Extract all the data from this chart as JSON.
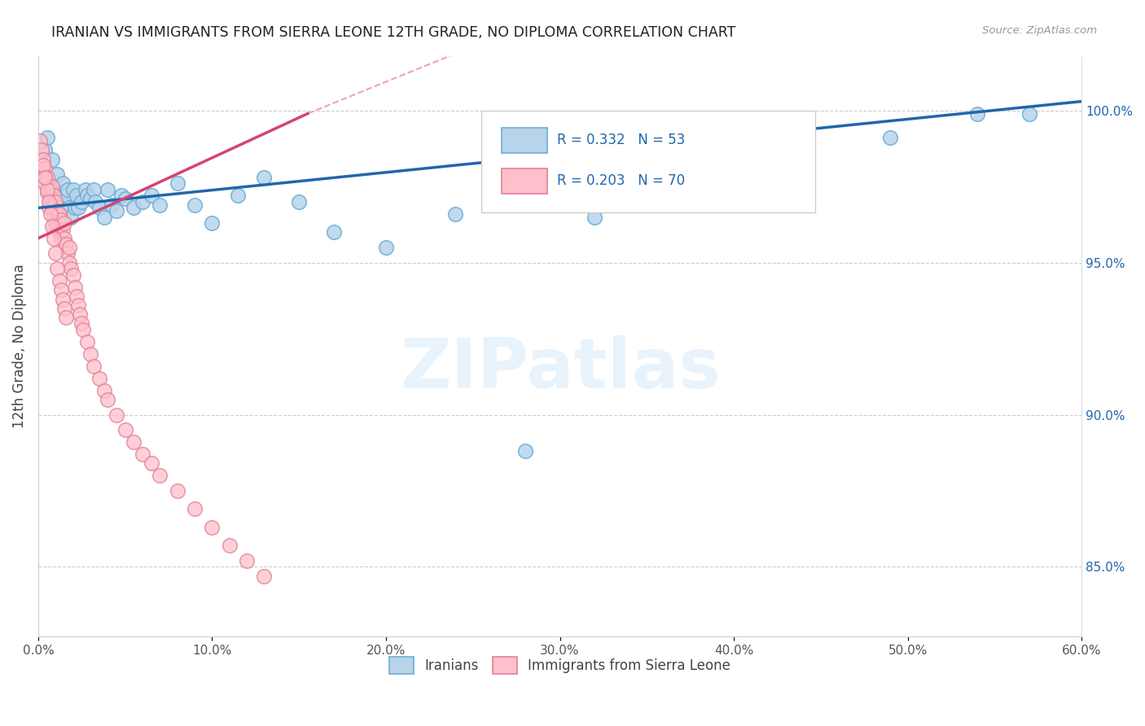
{
  "title": "IRANIAN VS IMMIGRANTS FROM SIERRA LEONE 12TH GRADE, NO DIPLOMA CORRELATION CHART",
  "source": "Source: ZipAtlas.com",
  "ylabel": "12th Grade, No Diploma",
  "ylabel_right_ticks": [
    "100.0%",
    "95.0%",
    "90.0%",
    "85.0%"
  ],
  "ylabel_right_values": [
    1.0,
    0.95,
    0.9,
    0.85
  ],
  "legend_blue_r": "R = 0.332",
  "legend_blue_n": "N = 53",
  "legend_pink_r": "R = 0.203",
  "legend_pink_n": "N = 70",
  "legend_label_blue": "Iranians",
  "legend_label_pink": "Immigrants from Sierra Leone",
  "blue_scatter_color_face": "#b8d4ea",
  "blue_scatter_color_edge": "#6baed6",
  "pink_scatter_color_face": "#ffc0cb",
  "pink_scatter_color_edge": "#e08098",
  "blue_line_color": "#2166ac",
  "pink_line_color": "#d6446e",
  "pink_dashed_color": "#f4a0b5",
  "background_color": "#ffffff",
  "watermark_text": "ZIPatlas",
  "x_min": 0.0,
  "x_max": 0.6,
  "y_min": 0.827,
  "y_max": 1.018,
  "blue_scatter_x": [
    0.002,
    0.004,
    0.005,
    0.006,
    0.007,
    0.008,
    0.009,
    0.01,
    0.011,
    0.012,
    0.013,
    0.014,
    0.015,
    0.016,
    0.017,
    0.018,
    0.019,
    0.02,
    0.021,
    0.022,
    0.023,
    0.025,
    0.027,
    0.028,
    0.03,
    0.032,
    0.033,
    0.035,
    0.038,
    0.04,
    0.042,
    0.045,
    0.048,
    0.05,
    0.055,
    0.06,
    0.065,
    0.07,
    0.08,
    0.09,
    0.1,
    0.115,
    0.13,
    0.15,
    0.17,
    0.2,
    0.24,
    0.28,
    0.32,
    0.4,
    0.49,
    0.54,
    0.57
  ],
  "blue_scatter_y": [
    0.981,
    0.987,
    0.991,
    0.976,
    0.971,
    0.984,
    0.966,
    0.974,
    0.979,
    0.97,
    0.973,
    0.976,
    0.969,
    0.972,
    0.974,
    0.968,
    0.965,
    0.974,
    0.968,
    0.972,
    0.968,
    0.97,
    0.974,
    0.972,
    0.971,
    0.974,
    0.97,
    0.968,
    0.965,
    0.974,
    0.969,
    0.967,
    0.972,
    0.971,
    0.968,
    0.97,
    0.972,
    0.969,
    0.976,
    0.969,
    0.963,
    0.972,
    0.978,
    0.97,
    0.96,
    0.955,
    0.966,
    0.888,
    0.965,
    0.974,
    0.991,
    0.999,
    0.999
  ],
  "pink_scatter_x": [
    0.001,
    0.002,
    0.003,
    0.003,
    0.004,
    0.004,
    0.005,
    0.005,
    0.006,
    0.007,
    0.007,
    0.008,
    0.008,
    0.009,
    0.009,
    0.01,
    0.01,
    0.011,
    0.011,
    0.012,
    0.012,
    0.013,
    0.013,
    0.014,
    0.015,
    0.015,
    0.016,
    0.017,
    0.018,
    0.018,
    0.019,
    0.02,
    0.021,
    0.022,
    0.023,
    0.024,
    0.025,
    0.026,
    0.028,
    0.03,
    0.032,
    0.035,
    0.038,
    0.04,
    0.045,
    0.05,
    0.055,
    0.06,
    0.065,
    0.07,
    0.08,
    0.09,
    0.1,
    0.11,
    0.12,
    0.13,
    0.005,
    0.006,
    0.007,
    0.008,
    0.009,
    0.01,
    0.011,
    0.012,
    0.013,
    0.014,
    0.015,
    0.016,
    0.003,
    0.004
  ],
  "pink_scatter_y": [
    0.99,
    0.987,
    0.979,
    0.984,
    0.976,
    0.981,
    0.973,
    0.978,
    0.968,
    0.974,
    0.971,
    0.975,
    0.968,
    0.972,
    0.965,
    0.97,
    0.963,
    0.967,
    0.962,
    0.966,
    0.96,
    0.964,
    0.958,
    0.961,
    0.958,
    0.963,
    0.956,
    0.953,
    0.95,
    0.955,
    0.948,
    0.946,
    0.942,
    0.939,
    0.936,
    0.933,
    0.93,
    0.928,
    0.924,
    0.92,
    0.916,
    0.912,
    0.908,
    0.905,
    0.9,
    0.895,
    0.891,
    0.887,
    0.884,
    0.88,
    0.875,
    0.869,
    0.863,
    0.857,
    0.852,
    0.847,
    0.974,
    0.97,
    0.966,
    0.962,
    0.958,
    0.953,
    0.948,
    0.944,
    0.941,
    0.938,
    0.935,
    0.932,
    0.982,
    0.978
  ],
  "blue_trendline_x": [
    0.0,
    0.6
  ],
  "blue_trendline_y": [
    0.968,
    1.003
  ],
  "pink_trendline_x": [
    0.0,
    0.155
  ],
  "pink_trendline_y": [
    0.958,
    0.999
  ]
}
